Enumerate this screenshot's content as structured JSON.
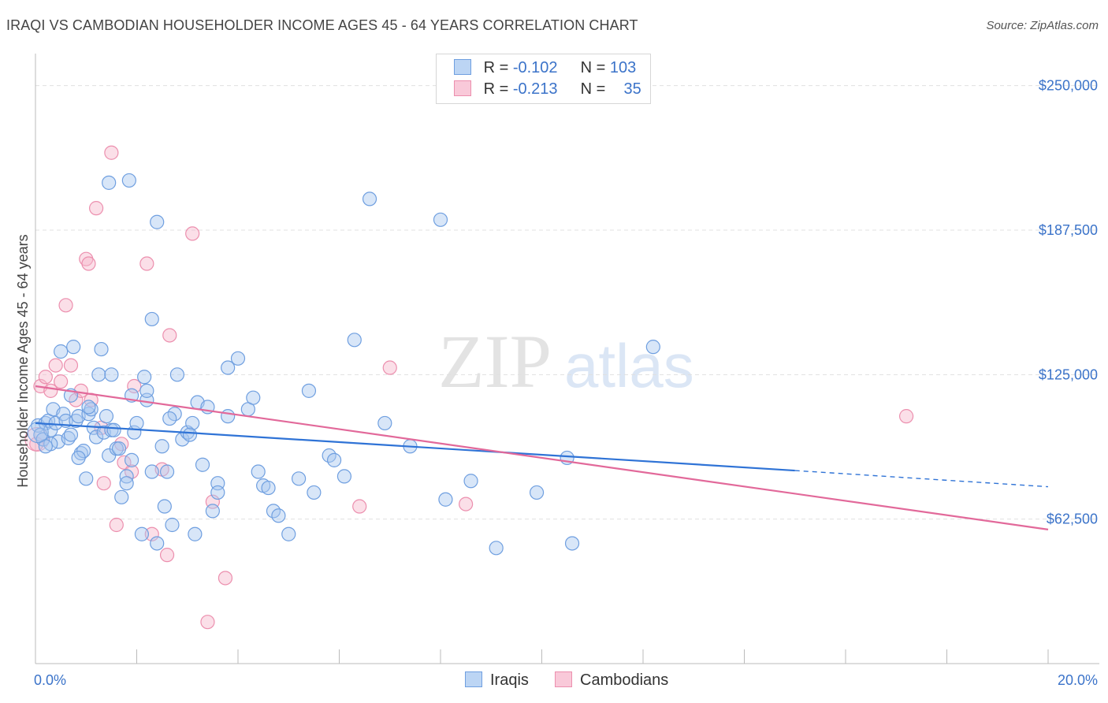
{
  "header": {
    "title": "IRAQI VS CAMBODIAN HOUSEHOLDER INCOME AGES 45 - 64 YEARS CORRELATION CHART",
    "source": "Source: ZipAtlas.com"
  },
  "watermark": {
    "zip": "ZIP",
    "atlas": "atlas"
  },
  "legend": {
    "rows": [
      {
        "r_label": "R =",
        "r_value": "-0.102",
        "n_label": "N =",
        "n_value": "103"
      },
      {
        "r_label": "R =",
        "r_value": "-0.213",
        "n_label": "N =",
        "n_value": "35"
      }
    ]
  },
  "bottom_legend": {
    "series1": "Iraqis",
    "series2": "Cambodians"
  },
  "colors": {
    "iraqi_fill": "#a9c8f0",
    "iraqi_stroke": "#6f9fe0",
    "iraqi_line": "#2f73d6",
    "cambodian_fill": "#f6b8cc",
    "cambodian_stroke": "#ec8fae",
    "cambodian_line": "#e2699a",
    "tick_text": "#3b73c9",
    "grid": "#e0e0e0"
  },
  "chart_data": {
    "type": "scatter",
    "title": "IRAQI VS CAMBODIAN HOUSEHOLDER INCOME AGES 45 - 64 YEARS CORRELATION CHART",
    "xlabel": "",
    "ylabel": "Householder Income Ages 45 - 64 years",
    "xlim": [
      0,
      20
    ],
    "ylim": [
      0,
      262500
    ],
    "x_tick_labels": [
      "0.0%",
      "20.0%"
    ],
    "y_ticks": [
      62500,
      125000,
      187500,
      250000
    ],
    "y_tick_labels": [
      "$62,500",
      "$125,000",
      "$187,500",
      "$250,000"
    ],
    "grid": "horizontal dashed",
    "legend_position": "top-center",
    "series": [
      {
        "name": "Iraqis",
        "r": -0.102,
        "n": 103,
        "trend": {
          "x": [
            0,
            15
          ],
          "y": [
            104000,
            83500
          ],
          "dashed_to": [
            20,
            76500
          ]
        },
        "points": [
          [
            0.05,
            103000
          ],
          [
            0.1,
            99000
          ],
          [
            0.15,
            97000
          ],
          [
            0.2,
            104000
          ],
          [
            0.25,
            105000
          ],
          [
            0.3,
            101000
          ],
          [
            0.35,
            110000
          ],
          [
            0.4,
            104000
          ],
          [
            0.45,
            96000
          ],
          [
            0.5,
            135000
          ],
          [
            0.55,
            108000
          ],
          [
            0.6,
            105000
          ],
          [
            0.65,
            97500
          ],
          [
            0.7,
            99000
          ],
          [
            0.75,
            137000
          ],
          [
            0.8,
            105000
          ],
          [
            0.85,
            107000
          ],
          [
            0.9,
            91000
          ],
          [
            0.95,
            92000
          ],
          [
            1.0,
            80000
          ],
          [
            1.05,
            108000
          ],
          [
            1.1,
            110000
          ],
          [
            1.15,
            102000
          ],
          [
            1.2,
            98000
          ],
          [
            1.25,
            125000
          ],
          [
            1.3,
            136000
          ],
          [
            1.35,
            100000
          ],
          [
            1.4,
            107000
          ],
          [
            1.45,
            90000
          ],
          [
            1.5,
            101000
          ],
          [
            1.55,
            101000
          ],
          [
            1.6,
            93000
          ],
          [
            1.7,
            72000
          ],
          [
            1.8,
            81000
          ],
          [
            1.8,
            78000
          ],
          [
            1.9,
            88000
          ],
          [
            1.95,
            100000
          ],
          [
            2.0,
            104000
          ],
          [
            2.1,
            56000
          ],
          [
            2.15,
            124000
          ],
          [
            2.2,
            114000
          ],
          [
            2.3,
            83000
          ],
          [
            2.4,
            52000
          ],
          [
            2.5,
            94000
          ],
          [
            2.55,
            68000
          ],
          [
            2.6,
            83000
          ],
          [
            2.7,
            60000
          ],
          [
            2.75,
            108000
          ],
          [
            2.8,
            125000
          ],
          [
            2.9,
            97000
          ],
          [
            3.0,
            100000
          ],
          [
            3.1,
            104000
          ],
          [
            3.15,
            56000
          ],
          [
            3.2,
            113000
          ],
          [
            3.3,
            86000
          ],
          [
            3.4,
            111000
          ],
          [
            3.5,
            66000
          ],
          [
            3.6,
            78000
          ],
          [
            3.8,
            107000
          ],
          [
            3.8,
            128000
          ],
          [
            4.0,
            132000
          ],
          [
            4.2,
            110000
          ],
          [
            4.3,
            115000
          ],
          [
            4.4,
            83000
          ],
          [
            4.5,
            77000
          ],
          [
            4.6,
            76000
          ],
          [
            4.7,
            66000
          ],
          [
            4.8,
            64000
          ],
          [
            5.0,
            56000
          ],
          [
            5.2,
            80000
          ],
          [
            5.4,
            118000
          ],
          [
            5.5,
            74000
          ],
          [
            5.8,
            90000
          ],
          [
            5.9,
            88000
          ],
          [
            6.1,
            81000
          ],
          [
            6.3,
            140000
          ],
          [
            6.6,
            201000
          ],
          [
            6.9,
            104000
          ],
          [
            7.4,
            94000
          ],
          [
            8.0,
            192000
          ],
          [
            8.1,
            71000
          ],
          [
            8.6,
            79000
          ],
          [
            9.1,
            50000
          ],
          [
            9.9,
            74000
          ],
          [
            10.5,
            89000
          ],
          [
            10.6,
            52000
          ],
          [
            12.2,
            137000
          ],
          [
            1.45,
            208000
          ],
          [
            1.85,
            209000
          ],
          [
            2.4,
            191000
          ],
          [
            2.3,
            149000
          ],
          [
            2.2,
            118000
          ],
          [
            0.3,
            95000
          ],
          [
            0.7,
            116000
          ],
          [
            1.05,
            111000
          ],
          [
            1.5,
            125000
          ],
          [
            1.9,
            116000
          ],
          [
            2.65,
            106000
          ],
          [
            3.05,
            99000
          ],
          [
            3.6,
            74000
          ],
          [
            0.85,
            89000
          ],
          [
            1.65,
            93000
          ],
          [
            0.2,
            94000
          ]
        ]
      },
      {
        "name": "Cambodians",
        "r": -0.213,
        "n": 35,
        "trend": {
          "x": [
            0,
            20
          ],
          "y": [
            120000,
            58000
          ]
        },
        "points": [
          [
            0.02,
            95000
          ],
          [
            0.1,
            120000
          ],
          [
            0.2,
            124000
          ],
          [
            0.3,
            118000
          ],
          [
            0.4,
            129000
          ],
          [
            0.5,
            122000
          ],
          [
            0.6,
            155000
          ],
          [
            0.7,
            129000
          ],
          [
            0.8,
            114000
          ],
          [
            0.9,
            118000
          ],
          [
            1.0,
            175000
          ],
          [
            1.05,
            173000
          ],
          [
            1.1,
            114000
          ],
          [
            1.2,
            197000
          ],
          [
            1.3,
            102000
          ],
          [
            1.35,
            78000
          ],
          [
            1.5,
            221000
          ],
          [
            1.6,
            60000
          ],
          [
            1.7,
            95000
          ],
          [
            1.75,
            87000
          ],
          [
            1.9,
            83000
          ],
          [
            1.95,
            120000
          ],
          [
            2.2,
            173000
          ],
          [
            2.3,
            56000
          ],
          [
            2.5,
            84000
          ],
          [
            2.6,
            47000
          ],
          [
            2.65,
            142000
          ],
          [
            3.1,
            186000
          ],
          [
            3.4,
            18000
          ],
          [
            3.5,
            70000
          ],
          [
            3.75,
            37000
          ],
          [
            6.4,
            68000
          ],
          [
            7.0,
            128000
          ],
          [
            8.5,
            69000
          ],
          [
            17.2,
            107000
          ]
        ]
      }
    ]
  }
}
